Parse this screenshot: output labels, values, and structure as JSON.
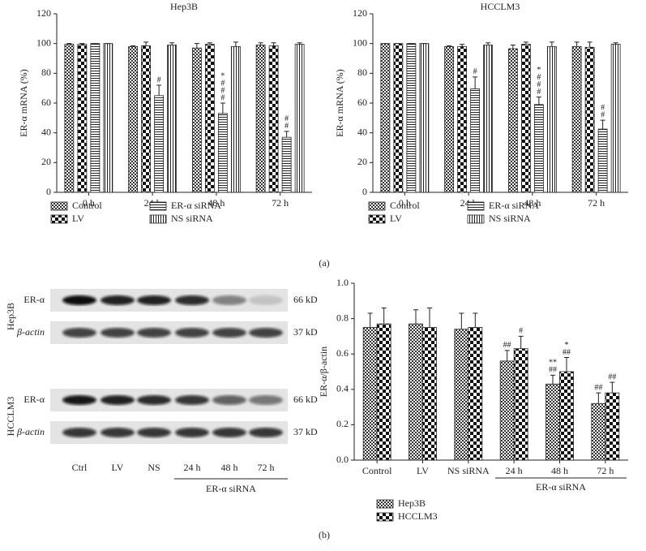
{
  "chart_data": [
    {
      "type": "bar",
      "title": "Hep3B",
      "y_label": "ER-α mRNA (%)",
      "categories": [
        "0 h",
        "24 h",
        "48 h",
        "72 h"
      ],
      "ylim": [
        0,
        120
      ],
      "yticks": [
        0,
        20,
        40,
        60,
        80,
        100,
        120
      ],
      "series": [
        {
          "name": "Control",
          "pattern": "dense-check",
          "values": [
            99.5,
            98,
            97,
            99
          ],
          "errors": [
            0.5,
            0.5,
            3,
            1.5
          ]
        },
        {
          "name": "LV",
          "pattern": "checker",
          "values": [
            99.5,
            98.5,
            99.5,
            98.5
          ],
          "errors": [
            0.5,
            2.5,
            1,
            2
          ]
        },
        {
          "name": "ER-α siRNA",
          "pattern": "hlines",
          "values": [
            100,
            65,
            53,
            37
          ],
          "errors": [
            0,
            7,
            7,
            4
          ],
          "annotations": [
            null,
            [
              "#"
            ],
            [
              "*",
              "#",
              "#",
              "#"
            ],
            [
              "#",
              "#"
            ]
          ]
        },
        {
          "name": "NS siRNA",
          "pattern": "vlines",
          "values": [
            100,
            99,
            98,
            99.5
          ],
          "errors": [
            0,
            1.5,
            3,
            1
          ]
        }
      ]
    },
    {
      "type": "bar",
      "title": "HCCLM3",
      "y_label": "ER-α mRNA (%)",
      "categories": [
        "0 h",
        "24 h",
        "48 h",
        "72 h"
      ],
      "ylim": [
        0,
        120
      ],
      "yticks": [
        0,
        20,
        40,
        60,
        80,
        100,
        120
      ],
      "series": [
        {
          "name": "Control",
          "pattern": "dense-check",
          "values": [
            100,
            98,
            96.5,
            98
          ],
          "errors": [
            0,
            0.5,
            2.5,
            3
          ]
        },
        {
          "name": "LV",
          "pattern": "checker",
          "values": [
            100,
            98,
            99.5,
            97.5
          ],
          "errors": [
            0,
            1.5,
            1.5,
            3.5
          ]
        },
        {
          "name": "ER-α siRNA",
          "pattern": "hlines",
          "values": [
            100,
            69.5,
            59,
            42.5
          ],
          "errors": [
            0,
            8,
            5,
            6
          ],
          "annotations": [
            null,
            [
              "#"
            ],
            [
              "*",
              "#",
              "#",
              "#"
            ],
            [
              "#",
              "#"
            ]
          ]
        },
        {
          "name": "NS siRNA",
          "pattern": "vlines",
          "values": [
            100,
            99,
            98,
            99.5
          ],
          "errors": [
            0,
            1.5,
            3,
            1
          ]
        }
      ]
    },
    {
      "type": "bar",
      "y_label": "ER-α/β-actin",
      "categories": [
        "Control",
        "LV",
        "NS siRNA",
        "24 h",
        "48 h",
        "72 h"
      ],
      "group_label": "ER-α siRNA",
      "ylim": [
        0,
        1.0
      ],
      "yticks": [
        {
          "value": 0,
          "label": "0.0"
        },
        0.2,
        0.4,
        0.6,
        0.8,
        {
          "value": 1.0,
          "label": "1.0"
        }
      ],
      "series": [
        {
          "name": "Hep3B",
          "pattern": "dense-check",
          "values": [
            0.75,
            0.77,
            0.74,
            0.56,
            0.43,
            0.32
          ],
          "errors": [
            0.08,
            0.08,
            0.09,
            0.06,
            0.05,
            0.06
          ],
          "annotations": [
            null,
            null,
            null,
            [
              "##"
            ],
            [
              "**",
              "##"
            ],
            [
              "##"
            ]
          ]
        },
        {
          "name": "HCCLM3",
          "pattern": "checker",
          "values": [
            0.77,
            0.75,
            0.75,
            0.63,
            0.5,
            0.38
          ],
          "errors": [
            0.09,
            0.11,
            0.08,
            0.07,
            0.08,
            0.06
          ],
          "annotations": [
            null,
            null,
            null,
            [
              "#"
            ],
            [
              "*",
              "##"
            ],
            [
              "##"
            ]
          ]
        }
      ]
    }
  ],
  "blot": {
    "lanes": [
      "Ctrl",
      "LV",
      "NS",
      "24 h",
      "48 h",
      "72 h"
    ],
    "group_label": "ER-α siRNA",
    "cell_lines": [
      "Hep3B",
      "HCCLM3"
    ],
    "rows": [
      {
        "label": "ER-α",
        "size": "66 kD"
      },
      {
        "label": "β-actin",
        "size": "37 kD"
      },
      {
        "label": "ER-α",
        "size": "66 kD"
      },
      {
        "label": "β-actin",
        "size": "37 kD"
      }
    ]
  },
  "panels": [
    "(a)",
    "(b)"
  ]
}
